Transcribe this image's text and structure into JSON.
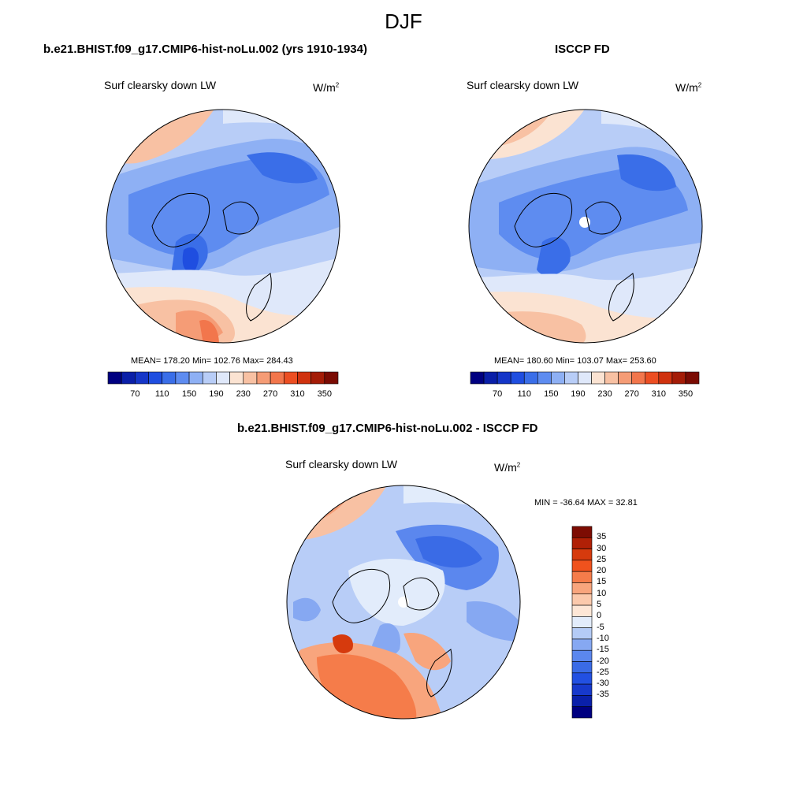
{
  "title": "DJF",
  "units": {
    "base": "W/m",
    "sup": "2"
  },
  "variable": "Surf clearsky down LW",
  "panels": {
    "model": {
      "title": "b.e21.BHIST.f09_g17.CMIP6-hist-noLu.002 (yrs 1910-1934)",
      "stats": "MEAN= 178.20   Min= 102.76   Max= 284.43"
    },
    "obs": {
      "title": "ISCCP FD",
      "stats": "MEAN= 180.60   Min= 103.07   Max= 253.60"
    },
    "diff": {
      "title": "b.e21.BHIST.f09_g17.CMIP6-hist-noLu.002 - ISCCP FD",
      "stats": "MIN = -36.64 MAX =  32.81"
    }
  },
  "colorbar_abs": {
    "colors": [
      "#000080",
      "#0a1fa8",
      "#1536c8",
      "#1f4ee0",
      "#3a6ee8",
      "#5e8cf0",
      "#8eb0f4",
      "#b8cdf7",
      "#dfe8fa",
      "#fbe3d2",
      "#f8c1a3",
      "#f59c76",
      "#f2764c",
      "#ec4e22",
      "#d0320f",
      "#a41c07",
      "#7a0b03"
    ],
    "labels": [
      "70",
      "110",
      "150",
      "190",
      "230",
      "270",
      "310",
      "350"
    ]
  },
  "colorbar_diff": {
    "colors": [
      "#000080",
      "#0a20aa",
      "#1739cc",
      "#2250e2",
      "#3a6be6",
      "#5b87ee",
      "#86a8f2",
      "#b4cbf6",
      "#e2ecfb",
      "#fde6d6",
      "#fbc9ac",
      "#f8a57d",
      "#f57c4a",
      "#f0521d",
      "#d63a0d",
      "#b02006",
      "#7d0c03"
    ],
    "labels": [
      "35",
      "30",
      "25",
      "20",
      "15",
      "10",
      "5",
      "0",
      "-5",
      "-10",
      "-15",
      "-20",
      "-25",
      "-30",
      "-35"
    ]
  }
}
